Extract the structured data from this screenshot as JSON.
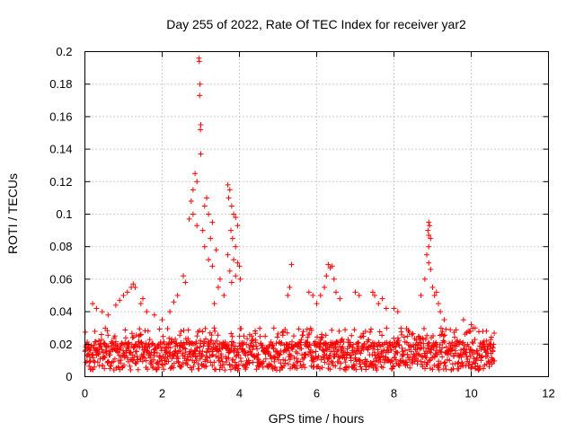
{
  "chart_data": {
    "type": "scatter",
    "title": "Day 255 of 2022, Rate Of TEC Index for receiver yar2",
    "xlabel": "GPS time / hours",
    "ylabel": "ROTI / TECUs",
    "xlim": [
      0,
      12
    ],
    "ylim": [
      0,
      0.2
    ],
    "xticks": [
      "0",
      "2",
      "4",
      "6",
      "8",
      "10",
      "12"
    ],
    "yticks": [
      "0",
      "0.02",
      "0.04",
      "0.06",
      "0.08",
      "0.1",
      "0.12",
      "0.14",
      "0.16",
      "0.18",
      "0.2"
    ],
    "grid": true,
    "marker": "plus",
    "color": "#ff0000",
    "x_range_of_data": [
      0,
      10.6
    ],
    "series": [
      {
        "name": "ROTI",
        "points": [
          [
            2.95,
            0.196
          ],
          [
            2.96,
            0.194
          ],
          [
            2.98,
            0.18
          ],
          [
            2.97,
            0.173
          ],
          [
            3.0,
            0.155
          ],
          [
            2.99,
            0.152
          ],
          [
            3.0,
            0.137
          ],
          [
            2.85,
            0.125
          ],
          [
            2.9,
            0.12
          ],
          [
            2.8,
            0.115
          ],
          [
            2.75,
            0.108
          ],
          [
            2.8,
            0.1
          ],
          [
            2.7,
            0.097
          ],
          [
            2.9,
            0.093
          ],
          [
            3.15,
            0.11
          ],
          [
            3.1,
            0.105
          ],
          [
            3.2,
            0.1
          ],
          [
            3.3,
            0.095
          ],
          [
            3.05,
            0.09
          ],
          [
            3.25,
            0.085
          ],
          [
            3.1,
            0.08
          ],
          [
            3.4,
            0.078
          ],
          [
            3.2,
            0.072
          ],
          [
            3.3,
            0.068
          ],
          [
            3.7,
            0.118
          ],
          [
            3.75,
            0.115
          ],
          [
            3.72,
            0.11
          ],
          [
            3.8,
            0.105
          ],
          [
            3.85,
            0.1
          ],
          [
            3.9,
            0.098
          ],
          [
            3.95,
            0.093
          ],
          [
            3.78,
            0.09
          ],
          [
            3.82,
            0.085
          ],
          [
            3.9,
            0.08
          ],
          [
            3.7,
            0.075
          ],
          [
            3.85,
            0.072
          ],
          [
            3.95,
            0.07
          ],
          [
            4.0,
            0.068
          ],
          [
            3.75,
            0.065
          ],
          [
            3.9,
            0.062
          ],
          [
            4.02,
            0.06
          ],
          [
            3.8,
            0.058
          ],
          [
            2.55,
            0.062
          ],
          [
            2.6,
            0.058
          ],
          [
            2.4,
            0.05
          ],
          [
            2.3,
            0.046
          ],
          [
            2.2,
            0.04
          ],
          [
            3.5,
            0.06
          ],
          [
            3.45,
            0.055
          ],
          [
            3.6,
            0.05
          ],
          [
            3.35,
            0.045
          ],
          [
            5.35,
            0.069
          ],
          [
            5.3,
            0.055
          ],
          [
            5.25,
            0.05
          ],
          [
            6.3,
            0.069
          ],
          [
            6.35,
            0.067
          ],
          [
            6.4,
            0.068
          ],
          [
            6.25,
            0.062
          ],
          [
            6.45,
            0.06
          ],
          [
            6.2,
            0.055
          ],
          [
            6.5,
            0.052
          ],
          [
            6.1,
            0.05
          ],
          [
            6.6,
            0.048
          ],
          [
            5.8,
            0.052
          ],
          [
            5.9,
            0.05
          ],
          [
            6.0,
            0.045
          ],
          [
            7.0,
            0.052
          ],
          [
            7.1,
            0.05
          ],
          [
            7.45,
            0.052
          ],
          [
            7.5,
            0.05
          ],
          [
            7.6,
            0.045
          ],
          [
            7.7,
            0.048
          ],
          [
            7.8,
            0.042
          ],
          [
            8.0,
            0.042
          ],
          [
            8.1,
            0.04
          ],
          [
            8.9,
            0.095
          ],
          [
            8.92,
            0.093
          ],
          [
            8.88,
            0.09
          ],
          [
            8.9,
            0.087
          ],
          [
            8.95,
            0.085
          ],
          [
            8.9,
            0.08
          ],
          [
            8.85,
            0.075
          ],
          [
            8.9,
            0.07
          ],
          [
            8.95,
            0.066
          ],
          [
            8.8,
            0.06
          ],
          [
            9.0,
            0.055
          ],
          [
            9.05,
            0.05
          ],
          [
            9.1,
            0.052
          ],
          [
            9.15,
            0.045
          ],
          [
            8.7,
            0.05
          ],
          [
            9.2,
            0.04
          ],
          [
            9.3,
            0.035
          ],
          [
            0.2,
            0.045
          ],
          [
            0.3,
            0.042
          ],
          [
            0.45,
            0.04
          ],
          [
            0.6,
            0.038
          ],
          [
            0.8,
            0.044
          ],
          [
            0.9,
            0.047
          ],
          [
            1.0,
            0.05
          ],
          [
            1.1,
            0.052
          ],
          [
            1.2,
            0.055
          ],
          [
            1.25,
            0.057
          ],
          [
            1.3,
            0.055
          ],
          [
            1.45,
            0.045
          ],
          [
            1.5,
            0.048
          ],
          [
            1.6,
            0.04
          ],
          [
            1.8,
            0.038
          ],
          [
            2.0,
            0.035
          ],
          [
            9.8,
            0.035
          ],
          [
            10.0,
            0.032
          ],
          [
            10.1,
            0.03
          ],
          [
            10.4,
            0.022
          ],
          [
            10.5,
            0.02
          ],
          [
            10.55,
            0.018
          ]
        ],
        "dense_band": {
          "description": "continuous band of points",
          "x_start": 0,
          "x_end": 10.6,
          "y_min": 0.004,
          "y_max": 0.03,
          "y_typical": 0.015
        }
      }
    ]
  }
}
